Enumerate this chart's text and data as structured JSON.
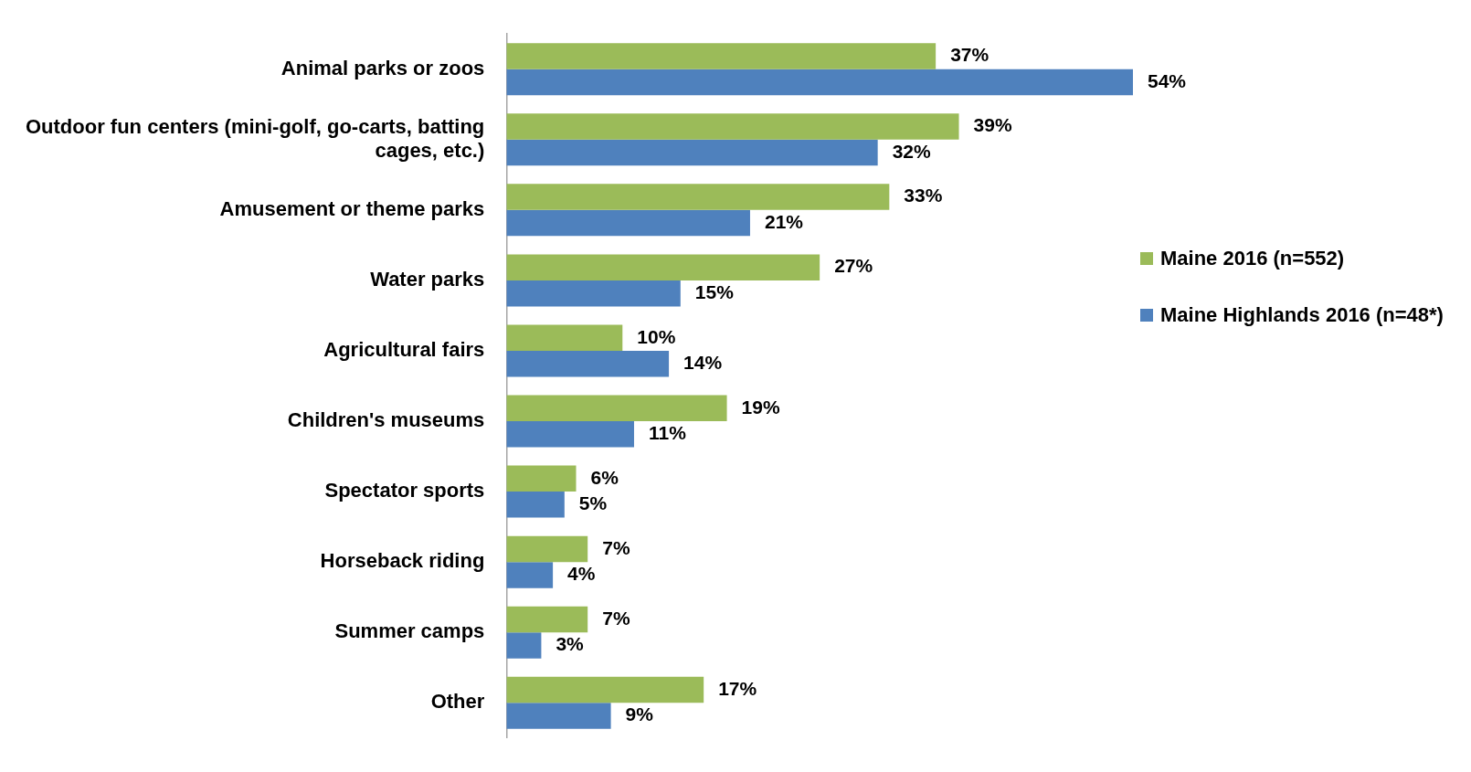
{
  "chart_data": {
    "type": "bar",
    "orientation": "horizontal",
    "categories": [
      "Animal parks or zoos",
      "Outdoor fun centers (mini-golf, go-carts, batting cages, etc.)",
      "Amusement or theme parks",
      "Water parks",
      "Agricultural fairs",
      "Children's museums",
      "Spectator sports",
      "Horseback riding",
      "Summer camps",
      "Other"
    ],
    "series": [
      {
        "name": "Maine 2016 (n=552)",
        "color": "#9bbb59",
        "values": [
          37,
          39,
          33,
          27,
          10,
          19,
          6,
          7,
          7,
          17
        ],
        "value_labels": [
          "37%",
          "39%",
          "33%",
          "27%",
          "10%",
          "19%",
          "6%",
          "7%",
          "7%",
          "17%"
        ]
      },
      {
        "name": "Maine Highlands 2016 (n=48*)",
        "color": "#4f81bd",
        "values": [
          54,
          32,
          21,
          15,
          14,
          11,
          5,
          4,
          3,
          9
        ],
        "value_labels": [
          "54%",
          "32%",
          "21%",
          "15%",
          "14%",
          "11%",
          "5%",
          "4%",
          "3%",
          "9%"
        ]
      }
    ],
    "xlim": [
      0,
      54
    ],
    "tick_labels": "y",
    "legend": "right"
  }
}
